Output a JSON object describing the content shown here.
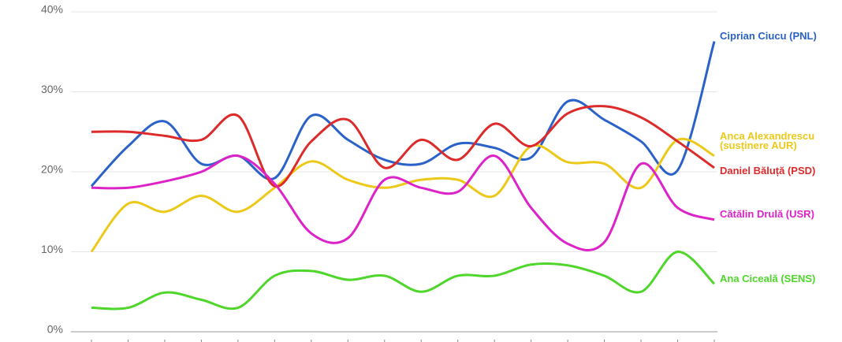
{
  "chart_data": {
    "type": "line",
    "categories": [
      null,
      null,
      null,
      null,
      null,
      null,
      null,
      null,
      null,
      null,
      null,
      null,
      null,
      null,
      null,
      null,
      null,
      null
    ],
    "ylim": [
      0,
      40
    ],
    "yticks": [
      {
        "value": 0,
        "label": "0%"
      },
      {
        "value": 10,
        "label": "10%"
      },
      {
        "value": 20,
        "label": "20%"
      },
      {
        "value": 30,
        "label": "30%"
      },
      {
        "value": 40,
        "label": "40%"
      }
    ],
    "grid": true,
    "series": [
      {
        "name": "Ciprian Ciucu (PNL)",
        "color": "#2a62c9",
        "values": [
          18.2,
          23.2,
          26.3,
          21,
          22,
          19.2,
          27,
          24,
          21.5,
          21,
          23.5,
          23,
          21.8,
          28.8,
          26.5,
          23.8,
          20.2,
          36.3
        ]
      },
      {
        "name": "Anca Alexandrescu (susținere AUR)",
        "color": "#ecc919",
        "values": [
          10,
          16,
          15,
          17,
          15,
          18,
          21.3,
          19,
          18,
          19,
          19,
          17,
          23.2,
          21.2,
          21,
          18,
          24,
          22
        ]
      },
      {
        "name": "Daniel Băluță (PSD)",
        "color": "#dd2a2a",
        "values": [
          25,
          25,
          24.5,
          24,
          27,
          18.2,
          23.8,
          26.5,
          20.5,
          24,
          21.5,
          26,
          23.2,
          27.3,
          28.2,
          26.8,
          23.8,
          20.5
        ]
      },
      {
        "name": "Cătălin Drulă (USR)",
        "color": "#dd22c8",
        "values": [
          18,
          18,
          18.8,
          20,
          22,
          18.5,
          12.3,
          11.7,
          19,
          18,
          17.5,
          22,
          15.5,
          11,
          11.2,
          21,
          15.5,
          14
        ]
      },
      {
        "name": "Ana Ciceală (SENS)",
        "color": "#4fd62a",
        "values": [
          3,
          3,
          4.9,
          4,
          3,
          7,
          7.6,
          6.5,
          7,
          5,
          7,
          7,
          8.4,
          8.3,
          7,
          5,
          10,
          6
        ]
      }
    ]
  }
}
